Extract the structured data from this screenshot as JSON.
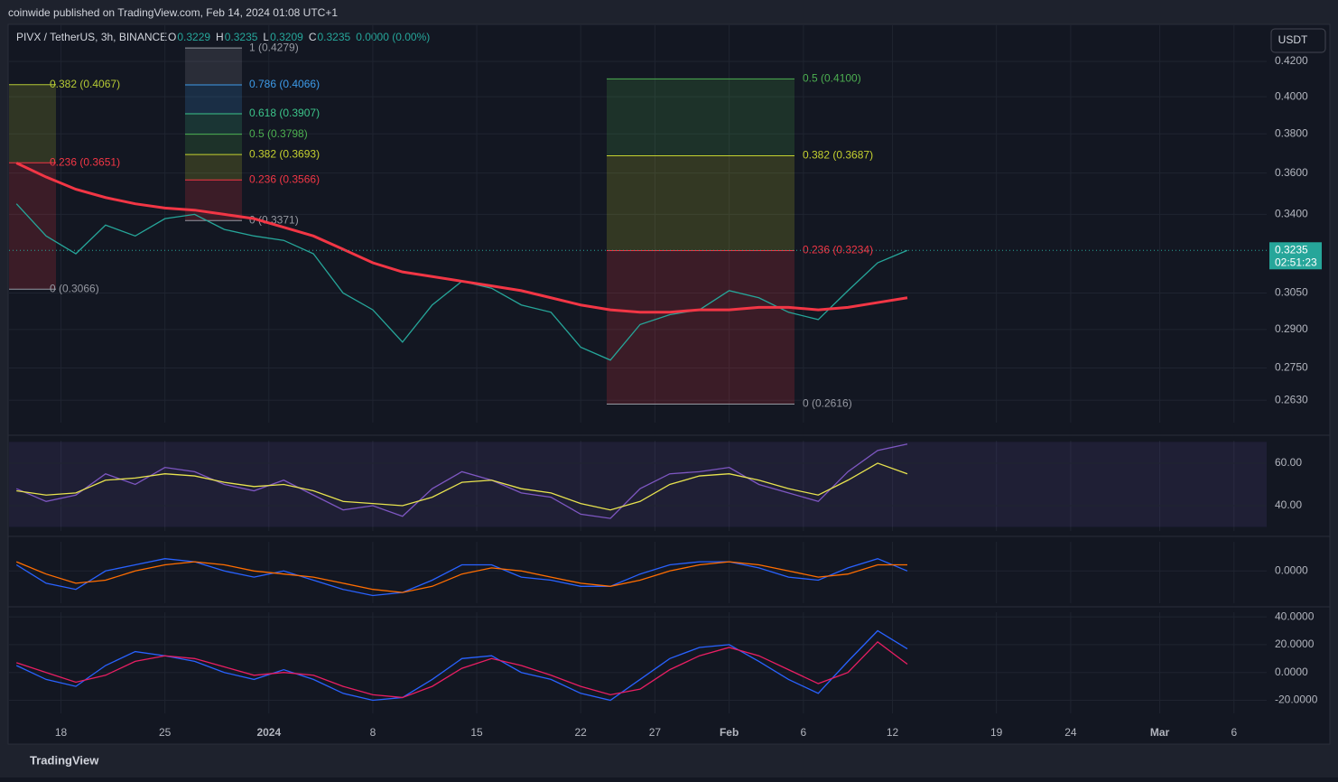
{
  "header": {
    "publisher": "coinwide published on TradingView.com, Feb 14, 2024 01:08 UTC+1",
    "symbol": "PIVX / TetherUS, 3h, BINANCE",
    "ohlc": [
      "O",
      "0.3229",
      "H",
      "0.3235",
      "L",
      "0.3209",
      "C",
      "0.3235",
      "0.0000 (0.00%)"
    ],
    "currency": "USDT"
  },
  "footer": {
    "brand": "TradingView"
  },
  "chart_data": [
    {
      "type": "line",
      "log_scale": true,
      "grid": true,
      "x": [
        -3,
        -1,
        1,
        3,
        5,
        7,
        9,
        11,
        13,
        15,
        17,
        19,
        21,
        23,
        25,
        27,
        29,
        31,
        33,
        35,
        37,
        39,
        41,
        43,
        45,
        47,
        49,
        51,
        53,
        55,
        57
      ],
      "series": [
        {
          "color": "#26a69a",
          "values": [
            0.345,
            0.33,
            0.322,
            0.335,
            0.33,
            0.338,
            0.34,
            0.333,
            0.33,
            0.328,
            0.322,
            0.305,
            0.298,
            0.285,
            0.3,
            0.31,
            0.307,
            0.3,
            0.297,
            0.283,
            0.278,
            0.292,
            0.296,
            0.298,
            0.306,
            0.303,
            0.297,
            0.294,
            0.306,
            0.318,
            0.3235
          ]
        },
        {
          "color": "#f23645",
          "values": [
            0.365,
            0.358,
            0.352,
            0.348,
            0.345,
            0.343,
            0.342,
            0.34,
            0.338,
            0.334,
            0.33,
            0.324,
            0.318,
            0.314,
            0.312,
            0.31,
            0.308,
            0.306,
            0.303,
            0.3,
            0.298,
            0.297,
            0.297,
            0.298,
            0.298,
            0.299,
            0.299,
            0.298,
            0.299,
            0.301,
            0.303
          ]
        }
      ],
      "ylim": [
        0.255,
        0.4415
      ],
      "yticks": [
        {
          "value": 0.42,
          "label": "0.4200"
        },
        {
          "value": 0.4,
          "label": "0.4000"
        },
        {
          "value": 0.38,
          "label": "0.3800"
        },
        {
          "value": 0.36,
          "label": "0.3600"
        },
        {
          "value": 0.34,
          "label": "0.3400"
        },
        {
          "value": 0.305,
          "label": "0.3050"
        },
        {
          "value": 0.29,
          "label": "0.2900"
        },
        {
          "value": 0.275,
          "label": "0.2750"
        },
        {
          "value": 0.263,
          "label": "0.2630"
        }
      ],
      "last_price": {
        "value": 0.3235,
        "countdown": "02:51:23"
      },
      "fibs": [
        {
          "levels": [
            {
              "label": "0.382 (0.4067)",
              "value": 0.4067,
              "color": "#b5c934"
            },
            {
              "label": "0.236 (0.3651)",
              "value": 0.3651,
              "color": "#f23645"
            },
            {
              "label": "0 (0.3066)",
              "value": 0.3066,
              "color": "#9598a1"
            }
          ]
        },
        {
          "levels": [
            {
              "label": "1 (0.4279)",
              "value": 0.4279,
              "color": "#9598a1"
            },
            {
              "label": "0.786 (0.4066)",
              "value": 0.4066,
              "color": "#3d9be9"
            },
            {
              "label": "0.618 (0.3907)",
              "value": 0.3907,
              "color": "#3cc48a"
            },
            {
              "label": "0.5 (0.3798)",
              "value": 0.3798,
              "color": "#4caf50"
            },
            {
              "label": "0.382 (0.3693)",
              "value": 0.3693,
              "color": "#c5d12f"
            },
            {
              "label": "0.236 (0.3566)",
              "value": 0.3566,
              "color": "#f23645"
            },
            {
              "label": "0 (0.3371)",
              "value": 0.3371,
              "color": "#9598a1"
            }
          ]
        },
        {
          "levels": [
            {
              "label": "0.5 (0.4100)",
              "value": 0.41,
              "color": "#4caf50"
            },
            {
              "label": "0.382 (0.3687)",
              "value": 0.3687,
              "color": "#c5d12f"
            },
            {
              "label": "0.236 (0.3234)",
              "value": 0.3234,
              "color": "#f23645"
            },
            {
              "label": "0 (0.2616)",
              "value": 0.2616,
              "color": "#9598a1"
            }
          ]
        }
      ]
    },
    {
      "type": "line",
      "grid": true,
      "series": [
        {
          "color": "#7e57c2",
          "values": [
            48,
            42,
            45,
            55,
            50,
            58,
            56,
            50,
            47,
            52,
            45,
            38,
            40,
            35,
            48,
            56,
            52,
            46,
            44,
            36,
            34,
            48,
            55,
            56,
            58,
            50,
            46,
            42,
            56,
            66,
            69
          ]
        },
        {
          "color": "#e8e34f",
          "values": [
            47,
            45,
            46,
            52,
            53,
            55,
            54,
            51,
            49,
            50,
            47,
            42,
            41,
            40,
            44,
            51,
            52,
            48,
            46,
            41,
            38,
            42,
            50,
            54,
            55,
            52,
            48,
            45,
            52,
            60,
            55
          ]
        }
      ],
      "ylim": [
        28.1,
        70.6
      ],
      "yticks": [
        {
          "value": 60,
          "label": "60.00"
        },
        {
          "value": 40,
          "label": "40.00"
        }
      ]
    },
    {
      "type": "line",
      "grid": true,
      "series": [
        {
          "color": "#2962ff",
          "values": [
            0.002,
            -0.004,
            -0.006,
            0.0,
            0.002,
            0.004,
            0.003,
            0.0,
            -0.002,
            0.0,
            -0.003,
            -0.006,
            -0.008,
            -0.007,
            -0.003,
            0.002,
            0.002,
            -0.002,
            -0.003,
            -0.005,
            -0.005,
            -0.001,
            0.002,
            0.003,
            0.003,
            0.001,
            -0.002,
            -0.003,
            0.001,
            0.004,
            0.0
          ]
        },
        {
          "color": "#ff6d00",
          "values": [
            0.003,
            -0.001,
            -0.004,
            -0.003,
            0.0,
            0.002,
            0.003,
            0.002,
            0.0,
            -0.001,
            -0.002,
            -0.004,
            -0.006,
            -0.007,
            -0.005,
            -0.001,
            0.001,
            0.0,
            -0.002,
            -0.004,
            -0.005,
            -0.003,
            0.0,
            0.002,
            0.003,
            0.002,
            0.0,
            -0.002,
            -0.001,
            0.002,
            0.002
          ]
        }
      ],
      "ylim": [
        -0.0105,
        0.0095
      ],
      "yticks": [
        {
          "value": 0,
          "label": "0.0000"
        }
      ]
    },
    {
      "type": "line",
      "grid": true,
      "series": [
        {
          "color": "#2962ff",
          "values": [
            5,
            -5,
            -10,
            5,
            15,
            12,
            8,
            0,
            -5,
            2,
            -5,
            -15,
            -20,
            -18,
            -5,
            10,
            12,
            0,
            -5,
            -15,
            -20,
            -5,
            10,
            18,
            20,
            8,
            -5,
            -15,
            8,
            30,
            17
          ]
        },
        {
          "color": "#e91e63",
          "values": [
            7,
            0,
            -7,
            -2,
            8,
            12,
            10,
            4,
            -2,
            0,
            -2,
            -10,
            -16,
            -18,
            -10,
            3,
            10,
            5,
            -2,
            -10,
            -16,
            -12,
            2,
            12,
            18,
            12,
            2,
            -8,
            0,
            22,
            6
          ]
        }
      ],
      "ylim": [
        -29.4,
        43.3
      ],
      "yticks": [
        {
          "value": 40,
          "label": "40.0000"
        },
        {
          "value": 20,
          "label": "20.0000"
        },
        {
          "value": 0,
          "label": "0.0000"
        },
        {
          "value": -20,
          "label": "-20.0000"
        }
      ],
      "xlim": [
        -3.5,
        81.2
      ],
      "xticks": [
        {
          "value": 0,
          "label": "18"
        },
        {
          "value": 7,
          "label": "25"
        },
        {
          "value": 14,
          "label": "2024"
        },
        {
          "value": 21,
          "label": "8"
        },
        {
          "value": 28,
          "label": "15"
        },
        {
          "value": 35,
          "label": "22"
        },
        {
          "value": 40,
          "label": "27"
        },
        {
          "value": 45,
          "label": "Feb"
        },
        {
          "value": 50,
          "label": "6"
        },
        {
          "value": 56,
          "label": "12"
        },
        {
          "value": 63,
          "label": "19"
        },
        {
          "value": 68,
          "label": "24"
        },
        {
          "value": 74,
          "label": "Mar"
        },
        {
          "value": 79,
          "label": "6"
        }
      ]
    }
  ]
}
